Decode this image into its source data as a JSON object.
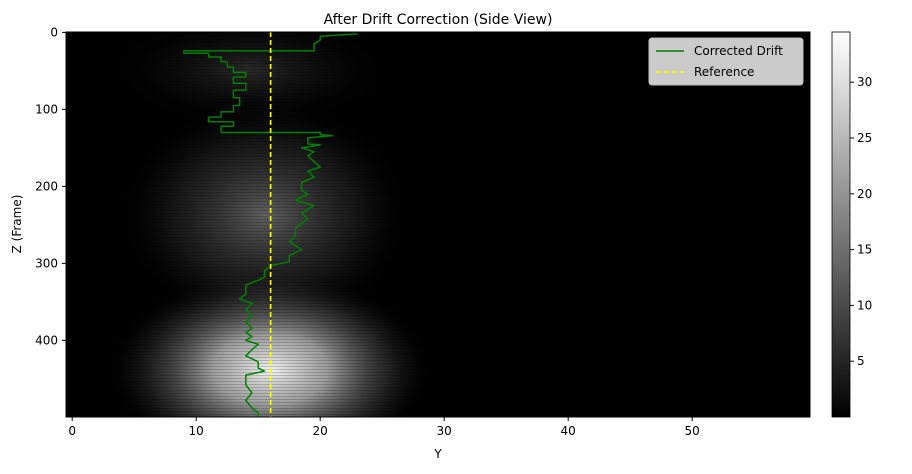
{
  "chart_data": {
    "type": "heatmap",
    "title": "After Drift Correction (Side View)",
    "xlabel": "Y",
    "ylabel": "Z (Frame)",
    "xlim": [
      -0.5,
      59.5
    ],
    "ylim": [
      499.5,
      -0.5
    ],
    "x_ticks": [
      0,
      10,
      20,
      30,
      40,
      50
    ],
    "y_ticks": [
      0,
      100,
      200,
      300,
      400
    ],
    "colormap": "gray",
    "colorbar": {
      "range": [
        0,
        34.5
      ],
      "ticks": [
        5,
        10,
        15,
        20,
        25,
        30
      ]
    },
    "legend": {
      "position": "top-right",
      "entries": [
        "Corrected Drift",
        "Reference"
      ]
    },
    "series": [
      {
        "name": "Corrected Drift",
        "style": "solid",
        "color": "#008000",
        "points": [
          [
            23,
            2
          ],
          [
            20,
            5
          ],
          [
            20,
            10
          ],
          [
            19.5,
            15
          ],
          [
            19.5,
            20
          ],
          [
            19.5,
            24
          ],
          [
            9,
            24
          ],
          [
            9,
            27
          ],
          [
            11,
            27
          ],
          [
            11,
            32
          ],
          [
            12,
            32
          ],
          [
            12,
            38
          ],
          [
            12.5,
            38
          ],
          [
            12.5,
            45
          ],
          [
            13,
            45
          ],
          [
            13,
            52
          ],
          [
            14,
            52
          ],
          [
            14,
            58
          ],
          [
            13,
            58
          ],
          [
            13,
            66
          ],
          [
            14,
            66
          ],
          [
            14,
            75
          ],
          [
            13,
            75
          ],
          [
            13,
            85
          ],
          [
            13.5,
            85
          ],
          [
            13.5,
            95
          ],
          [
            13,
            95
          ],
          [
            13,
            103
          ],
          [
            12,
            103
          ],
          [
            12,
            110
          ],
          [
            11,
            110
          ],
          [
            11,
            116
          ],
          [
            13,
            116
          ],
          [
            13,
            122
          ],
          [
            12,
            122
          ],
          [
            12,
            129
          ],
          [
            12,
            130
          ],
          [
            20,
            130
          ],
          [
            20,
            133
          ],
          [
            21,
            134
          ],
          [
            19,
            137
          ],
          [
            19,
            145
          ],
          [
            20,
            146
          ],
          [
            18.5,
            150
          ],
          [
            19.5,
            155
          ],
          [
            19,
            160
          ],
          [
            19.5,
            168
          ],
          [
            20,
            175
          ],
          [
            19,
            180
          ],
          [
            19.5,
            188
          ],
          [
            18.5,
            195
          ],
          [
            18.5,
            205
          ],
          [
            19,
            210
          ],
          [
            18,
            218
          ],
          [
            19.5,
            225
          ],
          [
            18.5,
            235
          ],
          [
            19,
            242
          ],
          [
            18.5,
            248
          ],
          [
            18,
            255
          ],
          [
            18,
            265
          ],
          [
            17.5,
            272
          ],
          [
            18.5,
            282
          ],
          [
            17.5,
            290
          ],
          [
            17.5,
            298
          ],
          [
            16,
            303
          ],
          [
            15.5,
            310
          ],
          [
            15.5,
            318
          ],
          [
            15,
            322
          ],
          [
            14,
            328
          ],
          [
            14,
            340
          ],
          [
            13.5,
            346
          ],
          [
            14.5,
            352
          ],
          [
            14,
            360
          ],
          [
            14.5,
            368
          ],
          [
            14,
            376
          ],
          [
            14.5,
            384
          ],
          [
            14,
            390
          ],
          [
            14.5,
            395
          ],
          [
            14,
            400
          ],
          [
            15,
            405
          ],
          [
            14.5,
            412
          ],
          [
            14,
            420
          ],
          [
            15,
            428
          ],
          [
            15,
            436
          ],
          [
            15.5,
            440
          ],
          [
            14,
            445
          ],
          [
            14,
            458
          ],
          [
            14.5,
            468
          ],
          [
            14,
            478
          ],
          [
            14.5,
            488
          ],
          [
            15,
            494
          ],
          [
            15,
            499
          ]
        ]
      },
      {
        "name": "Reference",
        "style": "dashed",
        "color": "#ffff00",
        "points": [
          [
            16,
            -0.5
          ],
          [
            16,
            499.5
          ]
        ]
      }
    ]
  }
}
